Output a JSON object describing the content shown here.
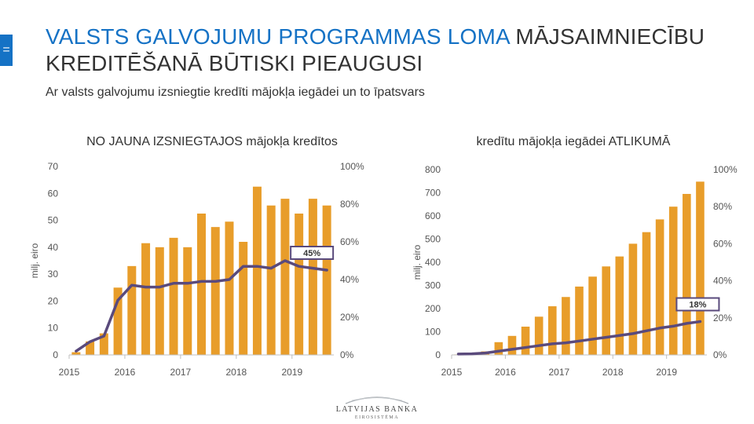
{
  "side_tab": {
    "label": "="
  },
  "title": {
    "part_blue": "VALSTS GALVOJUMU PROGRAMMAS LOMA",
    "part_dark": " MĀJSAIMNIECĪBU KREDITĒŠANĀ BŪTISKI PIEAUGUSI"
  },
  "subtitle": "Ar valsts galvojumu izsniegtie kredīti mājokļa iegādei un to īpatsvars",
  "colors": {
    "title_blue": "#1572c5",
    "bar": "#e89d2a",
    "line": "#5a4a7c"
  },
  "chart_data": [
    {
      "type": "bar",
      "title": "NO JAUNA IZSNIEGTAJOS mājokļa kredītos",
      "ylabel": "milj. eiro",
      "ylim": [
        0,
        70
      ],
      "yticks": [
        "0",
        "10",
        "20",
        "30",
        "40",
        "50",
        "60",
        "70"
      ],
      "y2lim": [
        0,
        100
      ],
      "y2ticks": [
        "0%",
        "20%",
        "40%",
        "60%",
        "80%",
        "100%"
      ],
      "x_tick_labels": [
        "2015",
        "2016",
        "2017",
        "2018",
        "2019"
      ],
      "x_tick_positions": [
        0,
        4,
        8,
        12,
        16
      ],
      "series": [
        {
          "type": "bar",
          "values": [
            1,
            5,
            8,
            25,
            33,
            41.5,
            40,
            43.5,
            40,
            52.5,
            47.5,
            49.5,
            42,
            62.5,
            55.5,
            58,
            52.5,
            58,
            55.5
          ]
        },
        {
          "type": "line",
          "axis": "secondary",
          "values": [
            2,
            7,
            10,
            29,
            37,
            36,
            36,
            38,
            38,
            39,
            39,
            40,
            47,
            47,
            46,
            50,
            47,
            46,
            45
          ]
        }
      ],
      "annotation": "45%"
    },
    {
      "type": "bar",
      "title": "kredītu mājokļa iegādei ATLIKUMĀ",
      "ylabel": "milj. eiro",
      "ylim": [
        0,
        800
      ],
      "yticks": [
        "0",
        "100",
        "200",
        "300",
        "400",
        "500",
        "600",
        "700",
        "800"
      ],
      "y2lim": [
        0,
        100
      ],
      "y2ticks": [
        "0%",
        "20%",
        "40%",
        "60%",
        "80%",
        "100%"
      ],
      "x_tick_labels": [
        "2015",
        "2016",
        "2017",
        "2018",
        "2019"
      ],
      "x_tick_positions": [
        0,
        4,
        8,
        12,
        16
      ],
      "series": [
        {
          "type": "bar",
          "values": [
            2,
            5,
            15,
            55,
            82,
            122,
            165,
            210,
            250,
            295,
            338,
            382,
            425,
            480,
            530,
            585,
            640,
            695,
            748
          ]
        },
        {
          "type": "line",
          "axis": "secondary",
          "values": [
            0.5,
            0.6,
            1,
            2,
            3,
            4,
            5,
            6,
            6.5,
            7.5,
            8.5,
            9.5,
            10.5,
            11.5,
            13,
            14.5,
            15.5,
            17,
            18
          ]
        }
      ],
      "annotation": "18%"
    }
  ],
  "logo": {
    "name": "LATVIJAS BANKA",
    "tagline": "EIROSISTĒMA"
  }
}
